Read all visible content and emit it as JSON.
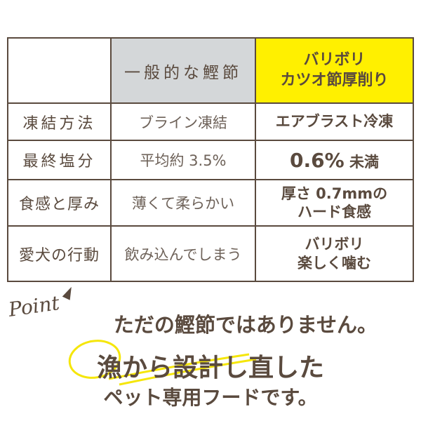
{
  "table": {
    "header": {
      "general": "一般的な鰹節",
      "ours_line1": "バリボリ",
      "ours_line2": "カツオ節厚削り"
    },
    "rows": [
      {
        "label": "凍結方法",
        "general": "ブライン凍結",
        "ours": [
          "エアブラスト冷凍"
        ]
      },
      {
        "label": "最終塩分",
        "general": "平均約 3.5%",
        "ours": [
          "0.6%",
          "未満"
        ]
      },
      {
        "label": "食感と厚み",
        "general": "薄くて柔らかい",
        "ours": [
          "厚さ 0.7mmの",
          "ハード食感"
        ]
      },
      {
        "label": "愛犬の行動",
        "general": "飲み込んでしまう",
        "ours": [
          "バリボリ",
          "楽しく噛む"
        ]
      }
    ]
  },
  "point": {
    "label": "Point",
    "line1": "ただの鰹節ではありません。",
    "line2": "漁から設計し直した",
    "line3": "ペット専用フードです。"
  },
  "colors": {
    "text": "#5a4a3e",
    "general_bg": "#d4d7d9",
    "highlight": "#fff000"
  }
}
